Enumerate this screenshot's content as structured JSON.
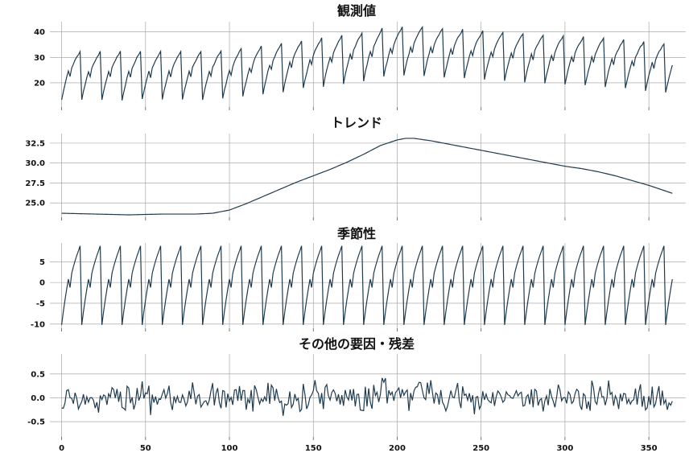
{
  "chart_data": [
    {
      "type": "line",
      "title": "観測値",
      "xlim": [
        -7,
        372
      ],
      "ylim": [
        10.5,
        44
      ],
      "yticks": [
        20,
        30,
        40
      ],
      "xticks": [
        0,
        50,
        100,
        150,
        200,
        250,
        300,
        350
      ],
      "show_x_ticklabels": false,
      "grid": true,
      "series_id": "observed",
      "x_range": [
        0,
        364
      ]
    },
    {
      "type": "line",
      "title": "トレンド",
      "xlim": [
        -7,
        372
      ],
      "ylim": [
        23.2,
        33.7
      ],
      "yticks": [
        25.0,
        27.5,
        30.0,
        32.5
      ],
      "xticks": [
        0,
        50,
        100,
        150,
        200,
        250,
        300,
        350
      ],
      "show_x_ticklabels": false,
      "grid": true,
      "series_id": "trend",
      "trend_knots": [
        [
          0,
          23.7
        ],
        [
          20,
          23.6
        ],
        [
          40,
          23.5
        ],
        [
          60,
          23.6
        ],
        [
          80,
          23.6
        ],
        [
          90,
          23.7
        ],
        [
          100,
          24.1
        ],
        [
          110,
          24.9
        ],
        [
          120,
          25.8
        ],
        [
          130,
          26.7
        ],
        [
          140,
          27.6
        ],
        [
          150,
          28.4
        ],
        [
          160,
          29.2
        ],
        [
          170,
          30.1
        ],
        [
          180,
          31.1
        ],
        [
          190,
          32.2
        ],
        [
          200,
          32.9
        ],
        [
          205,
          33.1
        ],
        [
          210,
          33.1
        ],
        [
          220,
          32.8
        ],
        [
          230,
          32.4
        ],
        [
          240,
          32.0
        ],
        [
          250,
          31.6
        ],
        [
          260,
          31.2
        ],
        [
          270,
          30.8
        ],
        [
          280,
          30.4
        ],
        [
          290,
          30.0
        ],
        [
          300,
          29.6
        ],
        [
          310,
          29.3
        ],
        [
          320,
          28.9
        ],
        [
          330,
          28.4
        ],
        [
          340,
          27.8
        ],
        [
          350,
          27.2
        ],
        [
          364,
          26.2
        ]
      ]
    },
    {
      "type": "line",
      "title": "季節性",
      "xlim": [
        -7,
        372
      ],
      "ylim": [
        -11,
        9.5
      ],
      "yticks": [
        -10,
        -5,
        0,
        5
      ],
      "xticks": [
        0,
        50,
        100,
        150,
        200,
        250,
        300,
        350
      ],
      "show_x_ticklabels": false,
      "grid": true,
      "series_id": "seasonal",
      "period": 12,
      "season_values": [
        -10.2,
        -7.0,
        -4.2,
        -1.6,
        0.8,
        -1.2,
        2.2,
        3.8,
        5.2,
        6.5,
        7.6,
        8.8
      ]
    },
    {
      "type": "line",
      "title": "その他の要因・残差",
      "xlim": [
        -7,
        372
      ],
      "ylim": [
        -0.82,
        0.92
      ],
      "yticks": [
        -0.5,
        0.0,
        0.5
      ],
      "xticks": [
        0,
        50,
        100,
        150,
        200,
        250,
        300,
        350
      ],
      "show_x_ticklabels": true,
      "grid": true,
      "series_id": "residual",
      "amplitude": 0.38
    }
  ]
}
